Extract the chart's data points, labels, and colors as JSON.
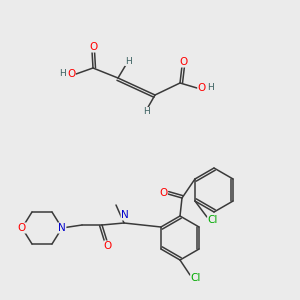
{
  "background_color": "#ebebeb",
  "fig_width": 3.0,
  "fig_height": 3.0,
  "dpi": 100,
  "atom_colors": {
    "O": "#ff0000",
    "N": "#0000cc",
    "Cl": "#00aa00",
    "C": "#3a3a3a",
    "H": "#3a6060"
  },
  "bond_color": "#3a3a3a",
  "bond_width": 1.1
}
